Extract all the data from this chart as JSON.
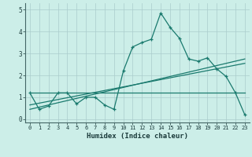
{
  "title": "",
  "xlabel": "Humidex (Indice chaleur)",
  "background_color": "#cceee8",
  "grid_color": "#aacccc",
  "line_color": "#1a7a6e",
  "xlim": [
    -0.5,
    23.5
  ],
  "ylim": [
    -0.15,
    5.3
  ],
  "xticks": [
    0,
    1,
    2,
    3,
    4,
    5,
    6,
    7,
    8,
    9,
    10,
    11,
    12,
    13,
    14,
    15,
    16,
    17,
    18,
    19,
    20,
    21,
    22,
    23
  ],
  "yticks": [
    0,
    1,
    2,
    3,
    4,
    5
  ],
  "line1_x": [
    0,
    1,
    2,
    3,
    4,
    5,
    6,
    7,
    8,
    9,
    10,
    11,
    12,
    13,
    14,
    15,
    16,
    17,
    18,
    19,
    20,
    21,
    22,
    23
  ],
  "line1_y": [
    1.2,
    0.45,
    0.6,
    1.2,
    1.2,
    0.7,
    1.0,
    1.0,
    0.65,
    0.45,
    2.2,
    3.3,
    3.5,
    3.65,
    4.85,
    4.2,
    3.7,
    2.75,
    2.65,
    2.8,
    2.3,
    1.95,
    1.2,
    0.2
  ],
  "line2_x": [
    0,
    23
  ],
  "line2_y": [
    1.2,
    1.2
  ],
  "line3_x": [
    0,
    23
  ],
  "line3_y": [
    0.65,
    2.55
  ],
  "line4_x": [
    0,
    23
  ],
  "line4_y": [
    0.45,
    2.75
  ]
}
